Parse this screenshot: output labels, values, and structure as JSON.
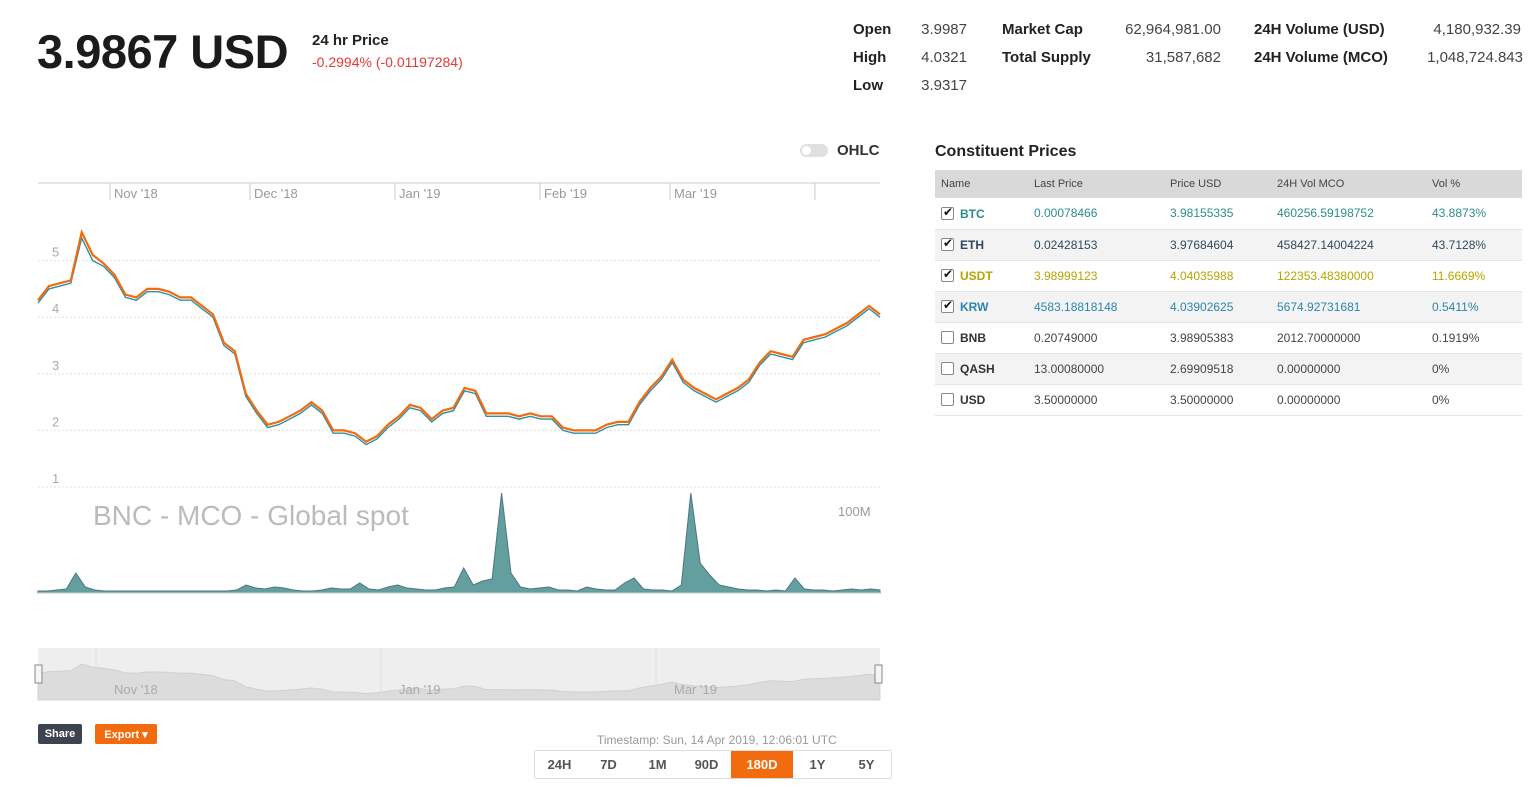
{
  "header": {
    "price": "3.9867 USD",
    "price_label": "24 hr Price",
    "change": "-0.2994% (-0.01197284)",
    "change_color": "#e53935"
  },
  "stats": {
    "open_label": "Open",
    "open": "3.9987",
    "high_label": "High",
    "high": "4.0321",
    "low_label": "Low",
    "low": "3.9317",
    "mcap_label": "Market Cap",
    "mcap": "62,964,981.00",
    "supply_label": "Total Supply",
    "supply": "31,587,682",
    "vol_usd_label": "24H Volume (USD)",
    "vol_usd": "4,180,932.39",
    "vol_mco_label": "24H Volume (MCO)",
    "vol_mco": "1,048,724.843"
  },
  "toggle_label": "OHLC",
  "chart_data": {
    "type": "line",
    "watermark": "BNC - MCO - Global spot",
    "x_labels": [
      "Nov '18",
      "Dec '18",
      "Jan '19",
      "Feb '19",
      "Mar '19"
    ],
    "y_ticks": [
      1,
      2,
      3,
      4,
      5
    ],
    "ylim": [
      1,
      6
    ],
    "volume_label": "100M",
    "navigator_labels": [
      "Nov '18",
      "Jan '19",
      "Mar '19"
    ],
    "series": [
      {
        "values": [
          4.25,
          4.5,
          4.55,
          4.6,
          5.4,
          5.0,
          4.9,
          4.7,
          4.35,
          4.3,
          4.45,
          4.45,
          4.4,
          4.3,
          4.3,
          4.15,
          4.0,
          3.5,
          3.35,
          2.6,
          2.3,
          2.05,
          2.1,
          2.2,
          2.3,
          2.45,
          2.3,
          1.95,
          1.95,
          1.9,
          1.75,
          1.85,
          2.05,
          2.2,
          2.4,
          2.35,
          2.15,
          2.3,
          2.35,
          2.7,
          2.65,
          2.25,
          2.25,
          2.25,
          2.2,
          2.25,
          2.2,
          2.2,
          2.0,
          1.95,
          1.95,
          1.95,
          2.05,
          2.1,
          2.1,
          2.45,
          2.7,
          2.9,
          3.2,
          2.85,
          2.7,
          2.6,
          2.5,
          2.6,
          2.7,
          2.85,
          3.15,
          3.35,
          3.3,
          3.25,
          3.55,
          3.6,
          3.65,
          3.75,
          3.85,
          4.0,
          4.15,
          4.0
        ]
      },
      {
        "values": [
          4.3,
          4.55,
          4.6,
          4.65,
          5.5,
          5.1,
          4.95,
          4.75,
          4.4,
          4.35,
          4.5,
          4.5,
          4.45,
          4.35,
          4.35,
          4.2,
          4.05,
          3.55,
          3.4,
          2.65,
          2.35,
          2.1,
          2.15,
          2.25,
          2.35,
          2.5,
          2.35,
          2.0,
          2.0,
          1.95,
          1.8,
          1.9,
          2.1,
          2.25,
          2.45,
          2.4,
          2.2,
          2.35,
          2.4,
          2.75,
          2.7,
          2.3,
          2.3,
          2.3,
          2.25,
          2.3,
          2.25,
          2.25,
          2.05,
          2.0,
          2.0,
          2.0,
          2.1,
          2.15,
          2.15,
          2.5,
          2.75,
          2.95,
          3.25,
          2.9,
          2.75,
          2.65,
          2.55,
          2.65,
          2.75,
          2.9,
          3.2,
          3.4,
          3.35,
          3.3,
          3.6,
          3.65,
          3.7,
          3.8,
          3.9,
          4.05,
          4.2,
          4.05
        ]
      }
    ],
    "colors": [
      "#2e8fa3",
      "#f26b0f"
    ],
    "volume_color": "#4a8f8f"
  },
  "buttons": {
    "share": "Share",
    "export": "Export ▾"
  },
  "timestamp": "Timestamp: Sun, 14 Apr 2019, 12:06:01 UTC",
  "ranges": [
    "24H",
    "7D",
    "1M",
    "90D",
    "180D",
    "1Y",
    "5Y"
  ],
  "active_range": "180D",
  "constituents": {
    "title": "Constituent Prices",
    "headers": [
      "Name",
      "Last Price",
      "Price USD",
      "24H Vol MCO",
      "Vol %"
    ],
    "rows": [
      {
        "checked": true,
        "name": "BTC",
        "last": "0.00078466",
        "usd": "3.98155335",
        "vol": "460256.59198752",
        "pct": "43.8873%",
        "color": "#2e8b8b"
      },
      {
        "checked": true,
        "name": "ETH",
        "last": "0.02428153",
        "usd": "3.97684604",
        "vol": "458427.14004224",
        "pct": "43.7128%",
        "color": "#2f4a5e"
      },
      {
        "checked": true,
        "name": "USDT",
        "last": "3.98999123",
        "usd": "4.04035988",
        "vol": "122353.48380000",
        "pct": "11.6669%",
        "color": "#b8a300"
      },
      {
        "checked": true,
        "name": "KRW",
        "last": "4583.18818148",
        "usd": "4.03902625",
        "vol": "5674.92731681",
        "pct": "0.5411%",
        "color": "#2a86b0"
      },
      {
        "checked": false,
        "name": "BNB",
        "last": "0.20749000",
        "usd": "3.98905383",
        "vol": "2012.70000000",
        "pct": "0.1919%",
        "color": "#333333"
      },
      {
        "checked": false,
        "name": "QASH",
        "last": "13.00080000",
        "usd": "2.69909518",
        "vol": "0.00000000",
        "pct": "0%",
        "color": "#333333"
      },
      {
        "checked": false,
        "name": "USD",
        "last": "3.50000000",
        "usd": "3.50000000",
        "vol": "0.00000000",
        "pct": "0%",
        "color": "#333333"
      }
    ]
  }
}
